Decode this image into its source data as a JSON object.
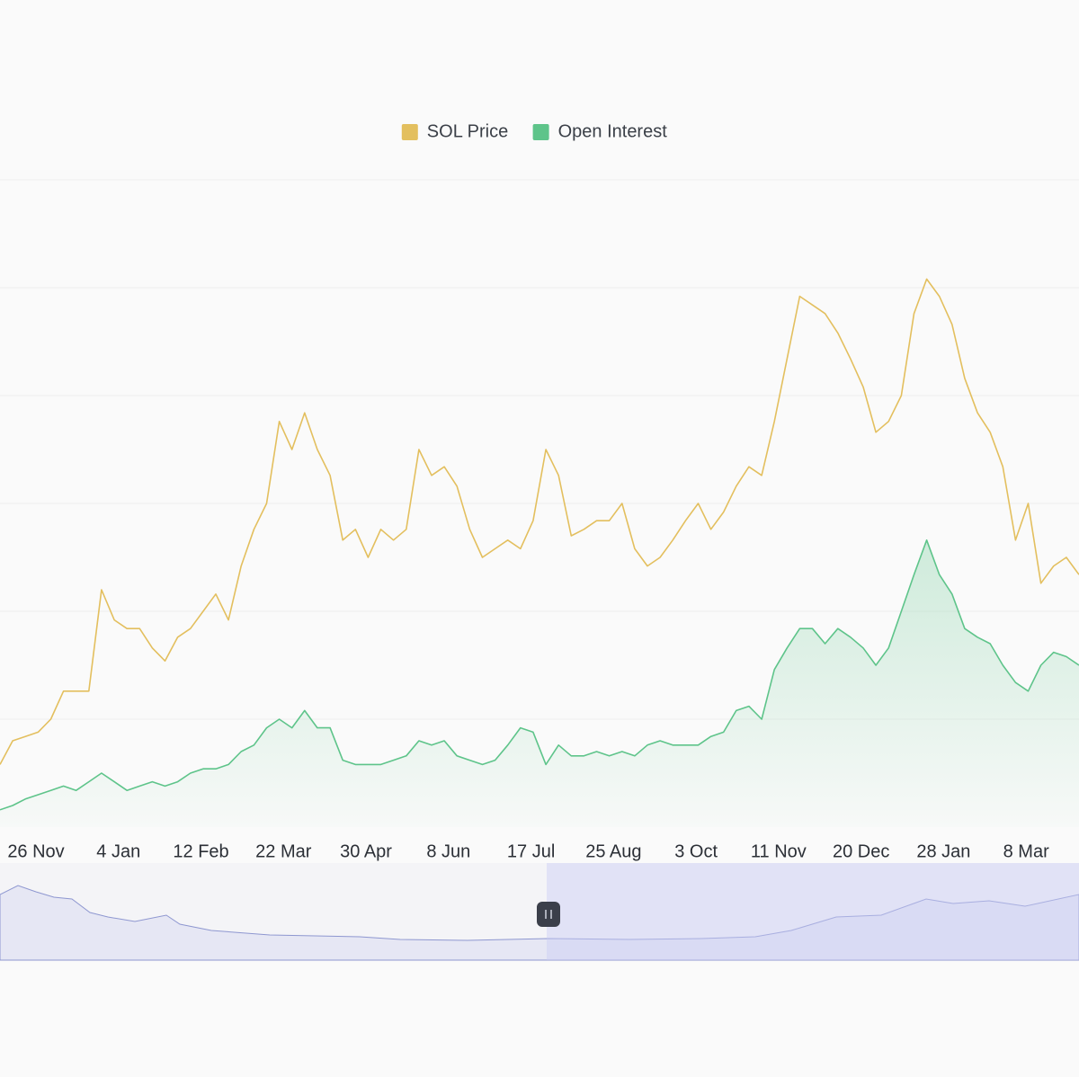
{
  "chart_data": {
    "type": "line",
    "x": [
      0,
      6,
      12,
      18,
      24,
      30,
      36,
      42,
      48,
      54,
      60,
      66,
      72,
      78,
      84,
      90,
      96,
      102,
      108,
      114,
      120,
      126,
      132,
      138,
      144,
      150,
      156,
      162,
      168,
      174,
      180,
      186,
      192,
      198,
      204,
      210,
      216,
      222,
      228,
      234,
      240,
      246,
      252,
      258,
      264,
      270,
      276,
      282,
      288,
      294,
      300,
      306,
      312,
      318,
      324,
      330,
      336,
      342,
      348,
      354,
      360,
      366,
      372,
      378,
      384,
      390,
      396,
      402,
      408,
      414,
      420,
      426,
      432,
      438,
      444,
      450,
      456,
      462,
      468,
      474,
      480,
      486,
      492,
      498,
      504,
      510
    ],
    "xlim": [
      0,
      510
    ],
    "xticks": [
      {
        "value": 17,
        "label": "26 Nov"
      },
      {
        "value": 56,
        "label": "4 Jan"
      },
      {
        "value": 95,
        "label": "12 Feb"
      },
      {
        "value": 134,
        "label": "22 Mar"
      },
      {
        "value": 173,
        "label": "30 Apr"
      },
      {
        "value": 212,
        "label": "8 Jun"
      },
      {
        "value": 251,
        "label": "17 Jul"
      },
      {
        "value": 290,
        "label": "25 Aug"
      },
      {
        "value": 329,
        "label": "3 Oct"
      },
      {
        "value": 368,
        "label": "11 Nov"
      },
      {
        "value": 407,
        "label": "20 Dec"
      },
      {
        "value": 446,
        "label": "28 Jan"
      },
      {
        "value": 485,
        "label": "8 Mar"
      }
    ],
    "ylim": [
      0,
      350
    ],
    "yticks": [
      50,
      100,
      150,
      200,
      250,
      300
    ],
    "grid": true,
    "legend": "top",
    "series": [
      {
        "name": "SOL Price",
        "color": "#e3bf5e",
        "values": [
          29,
          40,
          42,
          44,
          50,
          63,
          63,
          63,
          110,
          96,
          92,
          92,
          83,
          77,
          88,
          92,
          100,
          108,
          96,
          121,
          138,
          150,
          188,
          175,
          192,
          175,
          163,
          133,
          138,
          125,
          138,
          133,
          138,
          175,
          163,
          167,
          158,
          138,
          125,
          129,
          133,
          129,
          142,
          175,
          163,
          135,
          138,
          142,
          142,
          150,
          129,
          121,
          125,
          133,
          142,
          150,
          138,
          146,
          158,
          167,
          163,
          188,
          217,
          246,
          242,
          238,
          229,
          217,
          204,
          183,
          188,
          200,
          238,
          254,
          246,
          233,
          208,
          192,
          183,
          167,
          133,
          150,
          113,
          121,
          125,
          117
        ]
      },
      {
        "name": "Open Interest",
        "color": "#5ec48a",
        "values": [
          8,
          10,
          13,
          15,
          17,
          19,
          17,
          21,
          25,
          21,
          17,
          19,
          21,
          19,
          21,
          25,
          27,
          27,
          29,
          35,
          38,
          46,
          50,
          46,
          54,
          46,
          46,
          31,
          29,
          29,
          29,
          31,
          33,
          40,
          38,
          40,
          33,
          31,
          29,
          31,
          38,
          46,
          44,
          29,
          38,
          33,
          33,
          35,
          33,
          35,
          33,
          38,
          40,
          38,
          38,
          38,
          42,
          44,
          54,
          56,
          50,
          73,
          83,
          92,
          92,
          85,
          92,
          88,
          83,
          75,
          83,
          100,
          117,
          133,
          117,
          108,
          92,
          88,
          85,
          75,
          67,
          63,
          75,
          81,
          79,
          75
        ]
      }
    ]
  }
}
